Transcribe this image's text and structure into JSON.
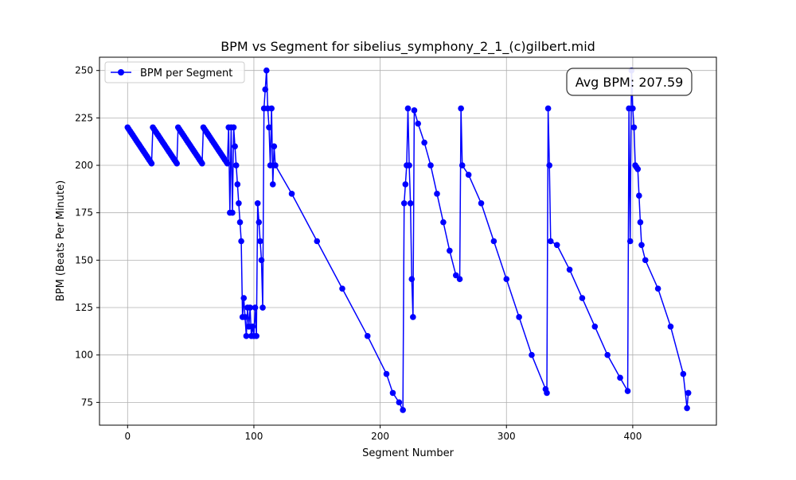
{
  "chart_data": {
    "type": "line",
    "title": "BPM vs Segment for sibelius_symphony_2_1_(c)gilbert.mid",
    "xlabel": "Segment Number",
    "ylabel": "BPM (Beats Per Minute)",
    "xlim": [
      -22.25,
      466.25
    ],
    "ylim": [
      63,
      257
    ],
    "xticks": [
      0,
      100,
      200,
      300,
      400
    ],
    "yticks": [
      75,
      100,
      125,
      150,
      175,
      200,
      225,
      250
    ],
    "grid": true,
    "legend": {
      "placement": "top-left"
    },
    "annotation": "Avg BPM: 207.59",
    "series": [
      {
        "name": "BPM per Segment",
        "color": "#0000ff",
        "marker": "circle",
        "x": [
          0,
          1,
          2,
          3,
          4,
          5,
          6,
          7,
          8,
          9,
          10,
          11,
          12,
          13,
          14,
          15,
          16,
          17,
          18,
          19,
          20,
          21,
          22,
          23,
          24,
          25,
          26,
          27,
          28,
          29,
          30,
          31,
          32,
          33,
          34,
          35,
          36,
          37,
          38,
          39,
          40,
          41,
          42,
          43,
          44,
          45,
          46,
          47,
          48,
          49,
          50,
          51,
          52,
          53,
          54,
          55,
          56,
          57,
          58,
          59,
          60,
          61,
          62,
          63,
          64,
          65,
          66,
          67,
          68,
          69,
          70,
          71,
          72,
          73,
          74,
          75,
          76,
          77,
          78,
          79,
          80,
          81,
          82,
          83,
          84,
          85,
          86,
          87,
          88,
          89,
          90,
          91,
          92,
          93,
          94,
          95,
          96,
          97,
          98,
          99,
          100,
          101,
          102,
          103,
          104,
          105,
          106,
          107,
          108,
          109,
          110,
          111,
          112,
          113,
          114,
          115,
          116,
          117,
          130,
          150,
          170,
          190,
          205,
          210,
          215,
          218,
          219,
          220,
          221,
          222,
          223,
          224,
          225,
          226,
          227,
          230,
          235,
          240,
          245,
          250,
          255,
          260,
          263,
          264,
          265,
          270,
          280,
          290,
          300,
          310,
          320,
          331,
          332,
          333,
          334,
          335,
          340,
          350,
          360,
          370,
          380,
          390,
          396,
          397,
          398,
          399,
          400,
          401,
          402,
          403,
          404,
          405,
          406,
          407,
          410,
          420,
          430,
          440,
          443,
          444
        ],
        "y": [
          220,
          219,
          218,
          217,
          216,
          215,
          214,
          213,
          212,
          211,
          210,
          209,
          208,
          207,
          206,
          205,
          204,
          203,
          202,
          201,
          220,
          219,
          218,
          217,
          216,
          215,
          214,
          213,
          212,
          211,
          210,
          209,
          208,
          207,
          206,
          205,
          204,
          203,
          202,
          201,
          220,
          219,
          218,
          217,
          216,
          215,
          214,
          213,
          212,
          211,
          210,
          209,
          208,
          207,
          206,
          205,
          204,
          203,
          202,
          201,
          220,
          219,
          218,
          217,
          216,
          215,
          214,
          213,
          212,
          211,
          210,
          209,
          208,
          207,
          206,
          205,
          204,
          203,
          202,
          201,
          220,
          175,
          220,
          175,
          220,
          210,
          200,
          190,
          180,
          170,
          160,
          120,
          130,
          120,
          110,
          125,
          115,
          125,
          110,
          115,
          110,
          125,
          110,
          180,
          170,
          160,
          150,
          125,
          230,
          240,
          250,
          230,
          220,
          200,
          230,
          190,
          210,
          200,
          185,
          160,
          135,
          110,
          90,
          80,
          75,
          71,
          180,
          190,
          200,
          230,
          200,
          180,
          140,
          120,
          229,
          222,
          212,
          200,
          185,
          170,
          155,
          142,
          140,
          230,
          200,
          195,
          180,
          160,
          140,
          120,
          100,
          82,
          80,
          230,
          200,
          160,
          158,
          145,
          130,
          115,
          100,
          88,
          81,
          230,
          160,
          250,
          230,
          220,
          200,
          199,
          198,
          184,
          170,
          158,
          150,
          135,
          115,
          90,
          72,
          80
        ]
      }
    ]
  }
}
